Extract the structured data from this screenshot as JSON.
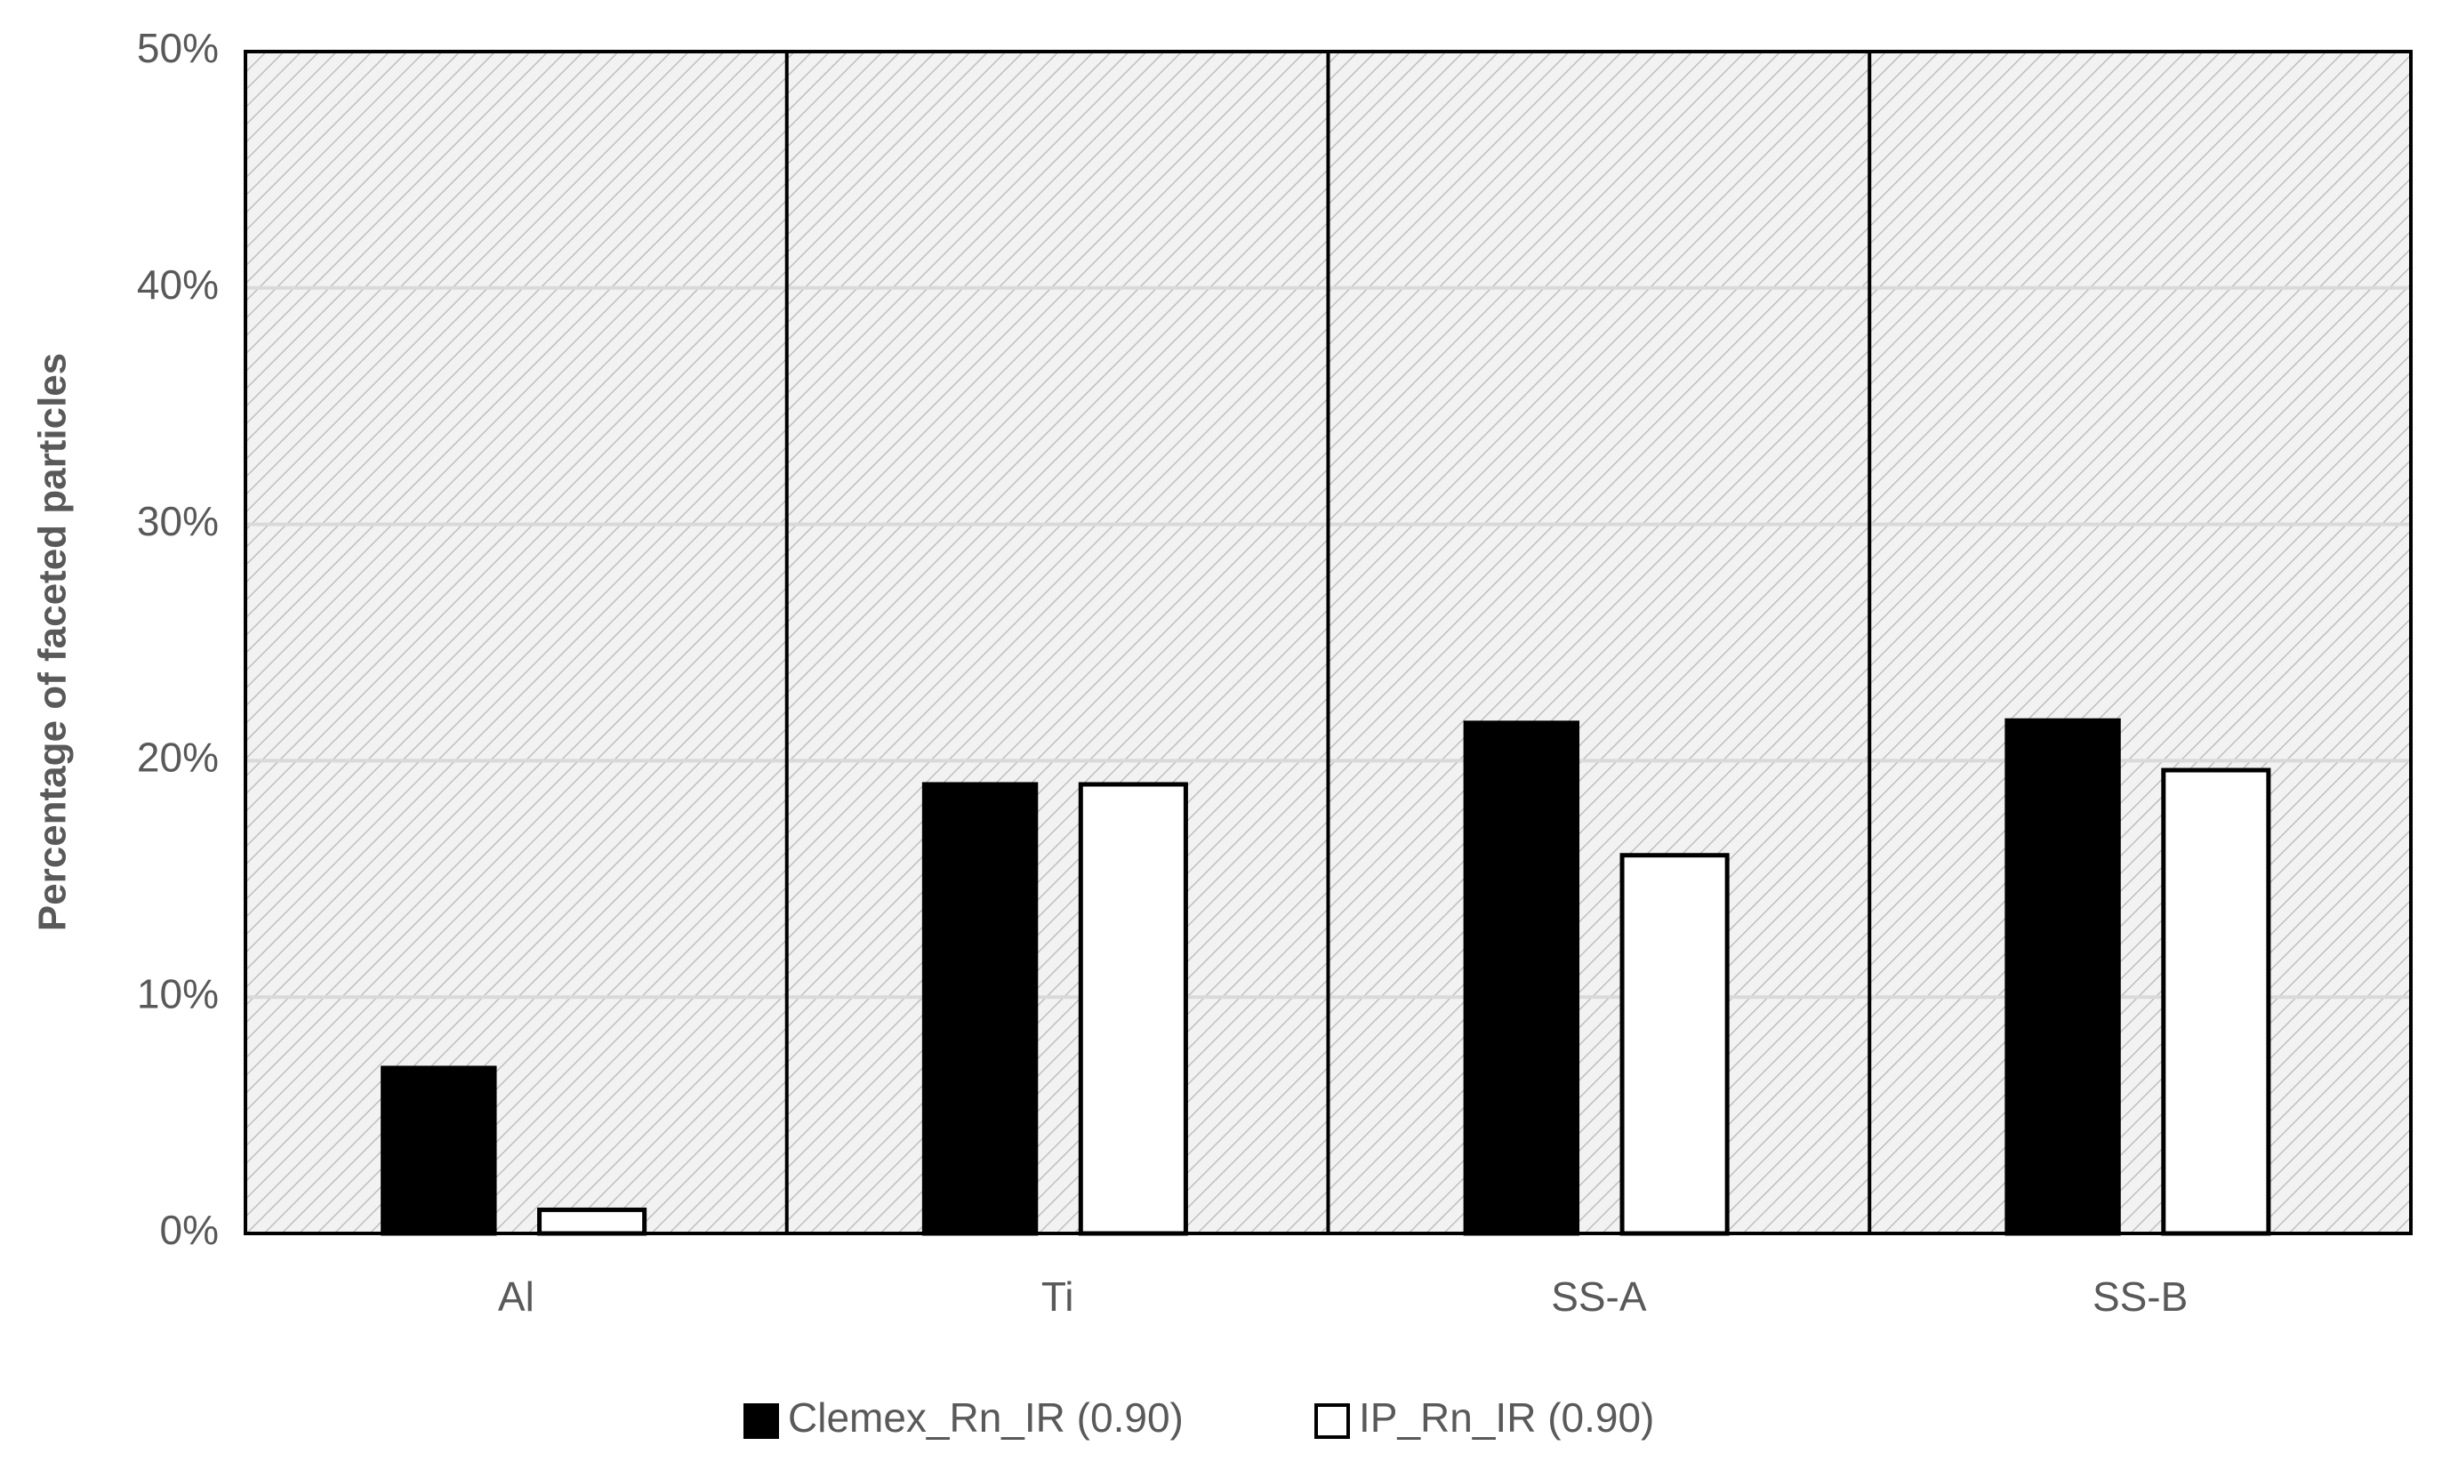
{
  "chart_data": {
    "type": "bar",
    "y_label": "Percentage of faceted particles",
    "categories": [
      "Al",
      "Ti",
      "SS-A",
      "SS-B"
    ],
    "series": [
      {
        "name": "Clemex_Rn_IR (0.90)",
        "color": "#000000",
        "values": [
          7,
          19,
          21.6,
          21.7
        ]
      },
      {
        "name": "IP_Rn_IR (0.90)",
        "color": "#ffffff",
        "values": [
          1,
          19,
          16,
          19.6
        ]
      }
    ],
    "ylim": [
      0,
      50
    ],
    "yticks": [
      {
        "value": 0,
        "label": "0%"
      },
      {
        "value": 10,
        "label": "10%"
      },
      {
        "value": 20,
        "label": "20%"
      },
      {
        "value": 30,
        "label": "30%"
      },
      {
        "value": 40,
        "label": "40%"
      },
      {
        "value": 50,
        "label": "50%"
      }
    ],
    "grid": true,
    "legend": "bottom"
  }
}
